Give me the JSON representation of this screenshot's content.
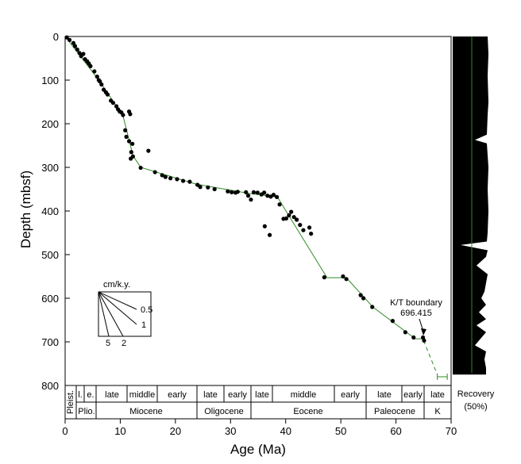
{
  "chart_data": {
    "type": "scatter",
    "xlabel": "Age (Ma)",
    "ylabel": "Depth (mbsf)",
    "xlim": [
      0,
      70
    ],
    "ylim": [
      0,
      800
    ],
    "y_inverted": true,
    "xticks": [
      0,
      10,
      20,
      30,
      40,
      50,
      60,
      70
    ],
    "yticks": [
      0,
      100,
      200,
      300,
      400,
      500,
      600,
      700,
      800
    ],
    "grid": false,
    "points": [
      {
        "x": 0.3,
        "y": 2
      },
      {
        "x": 0.8,
        "y": 8
      },
      {
        "x": 1.5,
        "y": 15
      },
      {
        "x": 1.8,
        "y": 22
      },
      {
        "x": 2.2,
        "y": 30
      },
      {
        "x": 2.6,
        "y": 38
      },
      {
        "x": 2.9,
        "y": 45
      },
      {
        "x": 3.3,
        "y": 40
      },
      {
        "x": 3.6,
        "y": 52
      },
      {
        "x": 4.0,
        "y": 57
      },
      {
        "x": 4.3,
        "y": 62
      },
      {
        "x": 4.6,
        "y": 68
      },
      {
        "x": 5.3,
        "y": 80
      },
      {
        "x": 5.8,
        "y": 92
      },
      {
        "x": 6.1,
        "y": 100
      },
      {
        "x": 6.3,
        "y": 103
      },
      {
        "x": 6.6,
        "y": 110
      },
      {
        "x": 7.0,
        "y": 122
      },
      {
        "x": 7.4,
        "y": 128
      },
      {
        "x": 7.7,
        "y": 133
      },
      {
        "x": 8.3,
        "y": 147
      },
      {
        "x": 8.7,
        "y": 152
      },
      {
        "x": 9.3,
        "y": 160
      },
      {
        "x": 9.6,
        "y": 167
      },
      {
        "x": 9.9,
        "y": 172
      },
      {
        "x": 10.2,
        "y": 174
      },
      {
        "x": 10.5,
        "y": 180
      },
      {
        "x": 11.6,
        "y": 172
      },
      {
        "x": 11.8,
        "y": 178
      },
      {
        "x": 10.9,
        "y": 215
      },
      {
        "x": 11.1,
        "y": 230
      },
      {
        "x": 11.6,
        "y": 240
      },
      {
        "x": 12.2,
        "y": 246
      },
      {
        "x": 12.0,
        "y": 265
      },
      {
        "x": 12.3,
        "y": 275
      },
      {
        "x": 11.9,
        "y": 280
      },
      {
        "x": 15.1,
        "y": 262
      },
      {
        "x": 13.7,
        "y": 301
      },
      {
        "x": 16.3,
        "y": 311
      },
      {
        "x": 17.6,
        "y": 318
      },
      {
        "x": 18.2,
        "y": 322
      },
      {
        "x": 19.1,
        "y": 325
      },
      {
        "x": 20.3,
        "y": 327
      },
      {
        "x": 21.4,
        "y": 331
      },
      {
        "x": 22.6,
        "y": 333
      },
      {
        "x": 24.0,
        "y": 340
      },
      {
        "x": 24.5,
        "y": 345
      },
      {
        "x": 25.9,
        "y": 346
      },
      {
        "x": 27.1,
        "y": 350
      },
      {
        "x": 29.5,
        "y": 355
      },
      {
        "x": 30.2,
        "y": 357
      },
      {
        "x": 30.9,
        "y": 358
      },
      {
        "x": 31.3,
        "y": 356
      },
      {
        "x": 32.8,
        "y": 357
      },
      {
        "x": 33.2,
        "y": 365
      },
      {
        "x": 33.7,
        "y": 374
      },
      {
        "x": 34.2,
        "y": 357
      },
      {
        "x": 34.9,
        "y": 358
      },
      {
        "x": 35.6,
        "y": 362
      },
      {
        "x": 36.1,
        "y": 358
      },
      {
        "x": 36.7,
        "y": 365
      },
      {
        "x": 37.3,
        "y": 367
      },
      {
        "x": 37.8,
        "y": 363
      },
      {
        "x": 38.4,
        "y": 368
      },
      {
        "x": 38.9,
        "y": 385
      },
      {
        "x": 39.6,
        "y": 418
      },
      {
        "x": 40.1,
        "y": 417
      },
      {
        "x": 40.6,
        "y": 410
      },
      {
        "x": 41.0,
        "y": 402
      },
      {
        "x": 41.5,
        "y": 414
      },
      {
        "x": 42.0,
        "y": 420
      },
      {
        "x": 42.6,
        "y": 432
      },
      {
        "x": 43.2,
        "y": 444
      },
      {
        "x": 44.3,
        "y": 438
      },
      {
        "x": 44.6,
        "y": 452
      },
      {
        "x": 36.2,
        "y": 435
      },
      {
        "x": 37.1,
        "y": 455
      },
      {
        "x": 47.0,
        "y": 552
      },
      {
        "x": 50.4,
        "y": 550
      },
      {
        "x": 51.0,
        "y": 556
      },
      {
        "x": 53.6,
        "y": 593
      },
      {
        "x": 54.1,
        "y": 600
      },
      {
        "x": 55.7,
        "y": 620
      },
      {
        "x": 59.4,
        "y": 652
      },
      {
        "x": 61.7,
        "y": 678
      },
      {
        "x": 63.2,
        "y": 690
      },
      {
        "x": 64.9,
        "y": 690
      },
      {
        "x": 65.1,
        "y": 697
      }
    ],
    "line": [
      {
        "x": 0,
        "y": 0
      },
      {
        "x": 6.0,
        "y": 98
      },
      {
        "x": 10.5,
        "y": 182
      },
      {
        "x": 12.3,
        "y": 273
      },
      {
        "x": 13.7,
        "y": 300
      },
      {
        "x": 23.6,
        "y": 338
      },
      {
        "x": 33.5,
        "y": 360
      },
      {
        "x": 38.5,
        "y": 368
      },
      {
        "x": 47.5,
        "y": 553
      },
      {
        "x": 51.0,
        "y": 553
      },
      {
        "x": 55.8,
        "y": 620
      },
      {
        "x": 63.5,
        "y": 693
      },
      {
        "x": 65.0,
        "y": 693
      }
    ],
    "line_dashed": [
      {
        "x": 65.0,
        "y": 697
      },
      {
        "x": 67.5,
        "y": 775
      }
    ],
    "hiatus_bar": {
      "x0": 67.5,
      "x1": 69.3,
      "y": 780
    },
    "annotation": {
      "text1": "K/T boundary",
      "text2": "696.415",
      "x": 65.0,
      "y": 694
    },
    "sed_rate_key": {
      "title": "cm/k.y.",
      "labels": [
        "0.5",
        "1",
        "5",
        "2"
      ]
    },
    "epochs": {
      "subepochs": [
        "Pleist.",
        "l.",
        "e.",
        "late",
        "middle",
        "early",
        "late",
        "early",
        "late",
        "middle",
        "early",
        "late",
        "early",
        "late"
      ],
      "epoch_names": [
        "Plio.",
        "Miocene",
        "Oligocene",
        "Eocene",
        "Paleocene",
        "K"
      ]
    },
    "recovery": {
      "label1": "Recovery",
      "label2": "(50%)"
    }
  }
}
